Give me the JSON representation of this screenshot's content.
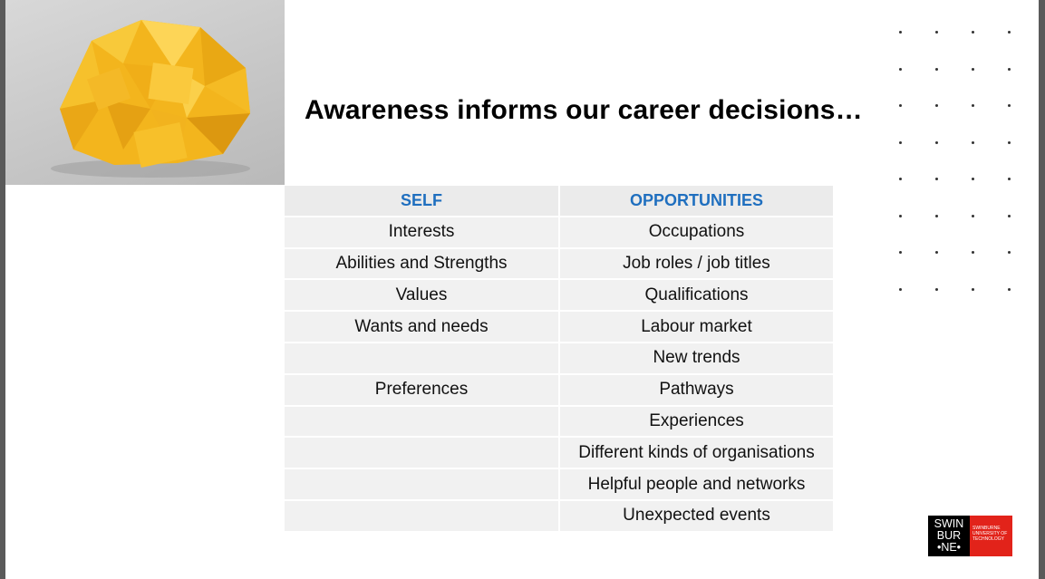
{
  "slide": {
    "title": "Awareness informs our career decisions…"
  },
  "photo": {
    "subject": "yellow origami brain"
  },
  "table": {
    "headers": [
      "SELF",
      "OPPORTUNITIES"
    ],
    "rows": [
      [
        "Interests",
        "Occupations"
      ],
      [
        "Abilities and Strengths",
        "Job roles / job titles"
      ],
      [
        "Values",
        "Qualifications"
      ],
      [
        "Wants and needs",
        "Labour market"
      ],
      [
        "",
        "New trends"
      ],
      [
        "Preferences",
        "Pathways"
      ],
      [
        "",
        "Experiences"
      ],
      [
        "",
        "Different kinds of organisations"
      ],
      [
        "",
        "Helpful people and networks"
      ],
      [
        "",
        "Unexpected events"
      ]
    ]
  },
  "logo": {
    "line1": "SWIN",
    "line2": "BUR",
    "line3": "•NE•",
    "subtext": "SWINBURNE UNIVERSITY OF TECHNOLOGY",
    "colors": {
      "black": "#000000",
      "red": "#e2231a"
    }
  },
  "colors": {
    "header_text": "#1f6fbf",
    "cell_bg": "#f1f1f1",
    "origami": "#f5b820"
  }
}
